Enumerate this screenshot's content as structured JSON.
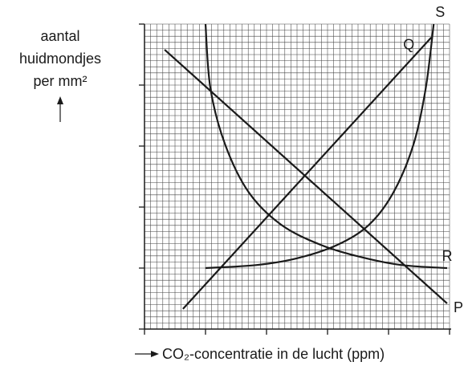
{
  "chart_data": {
    "type": "line",
    "y_label": [
      "aantal",
      "huidmondjes",
      "per mm²"
    ],
    "x_label": "CO₂-concentratie in de lucht (ppm)",
    "xlim": [
      0,
      5
    ],
    "ylim": [
      0,
      5
    ],
    "xticks": [
      0,
      1,
      2,
      3,
      4,
      5
    ],
    "yticks": [
      0,
      1,
      2,
      3,
      4,
      5
    ],
    "grid": true,
    "series": [
      {
        "name": "P",
        "color": "#1a1a1a",
        "x": [
          0.33,
          4.96
        ],
        "values": [
          4.58,
          0.42
        ]
      },
      {
        "name": "Q",
        "color": "#1a1a1a",
        "x": [
          0.63,
          4.7
        ],
        "values": [
          0.33,
          4.78
        ]
      },
      {
        "name": "R",
        "color": "#1a1a1a",
        "x": [
          1.0,
          1.08,
          1.32,
          1.71,
          2.24,
          2.89,
          3.55,
          4.21,
          4.96
        ],
        "values": [
          5.0,
          3.95,
          3.03,
          2.24,
          1.71,
          1.38,
          1.18,
          1.05,
          1.0
        ]
      },
      {
        "name": "S",
        "color": "#1a1a1a",
        "x": [
          1.0,
          1.84,
          2.5,
          3.16,
          3.68,
          4.08,
          4.41,
          4.61,
          4.74
        ],
        "values": [
          1.0,
          1.05,
          1.16,
          1.38,
          1.71,
          2.24,
          3.03,
          3.95,
          5.0
        ]
      }
    ]
  }
}
